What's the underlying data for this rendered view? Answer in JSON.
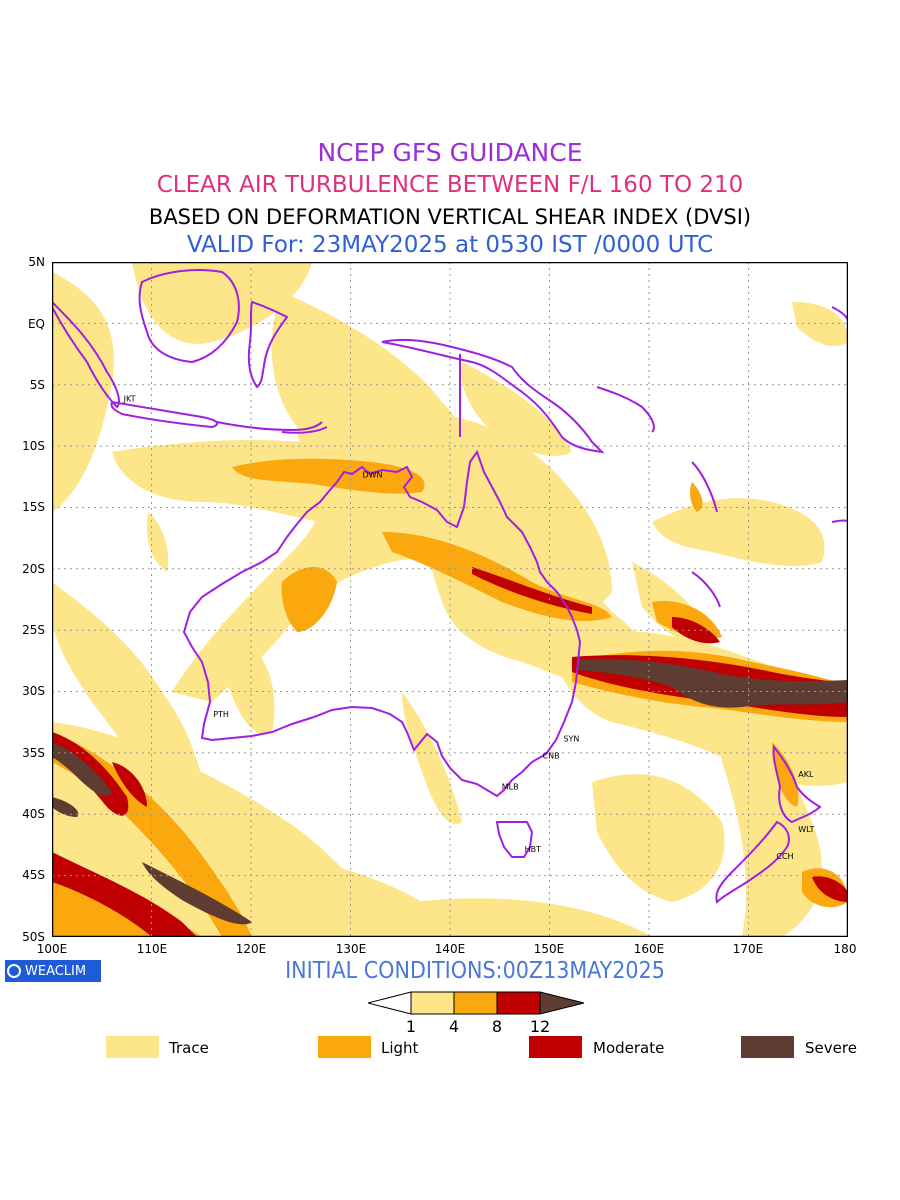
{
  "titles": {
    "line1": "NCEP GFS GUIDANCE",
    "line2": "CLEAR AIR TURBULENCE BETWEEN F/L 160 TO 210",
    "line3": "BASED ON DEFORMATION VERTICAL SHEAR INDEX (DVSI)",
    "line4": "VALID For: 23MAY2025 at 0530 IST /0000 UTC"
  },
  "colors": {
    "line1": "#9b2fd6",
    "line2": "#e0307a",
    "line3": "#000000",
    "line4": "#2f5fd8",
    "coast": "#a020e0",
    "trace": "#fde58a",
    "light": "#fba80f",
    "moderate": "#c00000",
    "severe": "#5e3c32",
    "initial_conditions": "#4a78d8",
    "badge": "#1f5bd8"
  },
  "map": {
    "lat_labels": [
      "5N",
      "EQ",
      "5S",
      "10S",
      "15S",
      "20S",
      "25S",
      "30S",
      "35S",
      "40S",
      "45S",
      "50S"
    ],
    "lon_labels": [
      "100E",
      "110E",
      "120E",
      "130E",
      "140E",
      "150E",
      "160E",
      "170E",
      "180"
    ],
    "cities": [
      {
        "code": "JKT",
        "lon": 107,
        "lat": -6.2
      },
      {
        "code": "DWN",
        "lon": 131,
        "lat": -12.4
      },
      {
        "code": "PTH",
        "lon": 116,
        "lat": -31.9
      },
      {
        "code": "SYN",
        "lon": 151.2,
        "lat": -33.9
      },
      {
        "code": "CNB",
        "lon": 149.1,
        "lat": -35.3
      },
      {
        "code": "MLB",
        "lon": 145,
        "lat": -37.8
      },
      {
        "code": "HBT",
        "lon": 147.3,
        "lat": -42.9
      },
      {
        "code": "AKL",
        "lon": 174.8,
        "lat": -36.8
      },
      {
        "code": "WLT",
        "lon": 174.8,
        "lat": -41.3
      },
      {
        "code": "CCH",
        "lon": 172.6,
        "lat": -43.5
      }
    ]
  },
  "badge": {
    "label": "WEACLIM"
  },
  "initial_conditions": "INITIAL CONDITIONS:00Z13MAY2025",
  "colorbar": {
    "ticks": [
      "1",
      "4",
      "8",
      "12"
    ]
  },
  "legend": [
    {
      "label": "Trace",
      "color": "#fde58a"
    },
    {
      "label": "Light",
      "color": "#fba80f"
    },
    {
      "label": "Moderate",
      "color": "#c00000"
    },
    {
      "label": "Severe",
      "color": "#5e3c32"
    }
  ]
}
